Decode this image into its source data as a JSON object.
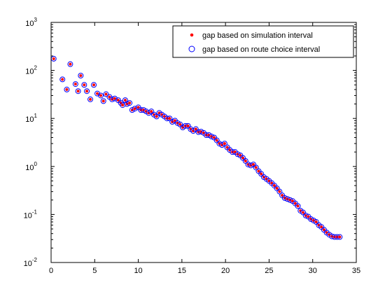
{
  "chart_data": {
    "type": "scatter",
    "title": "",
    "xlabel": "",
    "ylabel": "",
    "xlim": [
      0,
      35
    ],
    "ylim": [
      0.01,
      1000
    ],
    "yscale": "log",
    "grid": false,
    "legend_position": "top-right",
    "x_ticks": [
      "0",
      "5",
      "10",
      "15",
      "20",
      "25",
      "30",
      "35"
    ],
    "y_ticks": [
      {
        "base": "10",
        "exp": "-2",
        "value": 0.01
      },
      {
        "base": "10",
        "exp": "-1",
        "value": 0.1
      },
      {
        "base": "10",
        "exp": "0",
        "value": 1
      },
      {
        "base": "10",
        "exp": "1",
        "value": 10
      },
      {
        "base": "10",
        "exp": "2",
        "value": 100
      },
      {
        "base": "10",
        "exp": "3",
        "value": 1000
      }
    ],
    "series": [
      {
        "name": "gap based on simulation interval",
        "color": "#ff0000",
        "marker": "dot"
      },
      {
        "name": "gap based on route choice interval",
        "color": "#0000ff",
        "marker": "circle"
      }
    ],
    "x": [
      0.3,
      1.3,
      1.8,
      2.2,
      2.8,
      3.1,
      3.4,
      3.8,
      4.1,
      4.5,
      4.9,
      5.3,
      5.7,
      6.0,
      6.3,
      6.7,
      7.0,
      7.3,
      7.7,
      8.0,
      8.2,
      8.5,
      8.7,
      9.0,
      9.3,
      9.6,
      10.0,
      10.3,
      10.6,
      10.9,
      11.2,
      11.5,
      11.8,
      12.1,
      12.4,
      12.7,
      13.0,
      13.3,
      13.6,
      13.9,
      14.2,
      14.5,
      14.8,
      15.1,
      15.4,
      15.7,
      16.0,
      16.3,
      16.6,
      16.9,
      17.2,
      17.5,
      17.8,
      18.1,
      18.4,
      18.7,
      19.0,
      19.3,
      19.6,
      19.9,
      20.2,
      20.5,
      20.8,
      21.1,
      21.4,
      21.7,
      22.0,
      22.3,
      22.6,
      22.9,
      23.2,
      23.5,
      23.8,
      24.1,
      24.4,
      24.7,
      25.0,
      25.3,
      25.6,
      25.9,
      26.2,
      26.5,
      26.8,
      27.1,
      27.4,
      27.7,
      28.0,
      28.3,
      28.6,
      28.9,
      29.2,
      29.5,
      29.8,
      30.1,
      30.4,
      30.7,
      31.0,
      31.3,
      31.6,
      31.9,
      32.2,
      32.5,
      32.8,
      33.1
    ],
    "values": [
      175,
      65,
      40,
      135,
      52,
      37,
      78,
      50,
      37,
      25,
      50,
      33,
      30,
      23,
      32,
      28,
      25,
      26,
      24,
      21,
      19,
      24,
      20,
      21,
      15,
      16,
      17,
      15,
      15,
      14,
      13,
      14,
      12,
      11,
      13,
      12,
      11,
      10,
      10,
      8.5,
      9,
      8,
      7.5,
      6.5,
      7,
      7,
      6,
      5.5,
      6,
      5.2,
      5.3,
      5,
      4.5,
      4.5,
      4.2,
      4,
      3.5,
      3,
      2.8,
      3,
      2.5,
      2.2,
      2,
      2,
      1.8,
      1.7,
      1.5,
      1.3,
      1.1,
      1.05,
      1.1,
      0.95,
      0.8,
      0.7,
      0.6,
      0.55,
      0.5,
      0.45,
      0.4,
      0.35,
      0.3,
      0.25,
      0.22,
      0.21,
      0.2,
      0.19,
      0.17,
      0.15,
      0.12,
      0.11,
      0.095,
      0.09,
      0.08,
      0.075,
      0.07,
      0.06,
      0.055,
      0.048,
      0.042,
      0.038,
      0.035,
      0.034,
      0.034,
      0.034
    ]
  }
}
